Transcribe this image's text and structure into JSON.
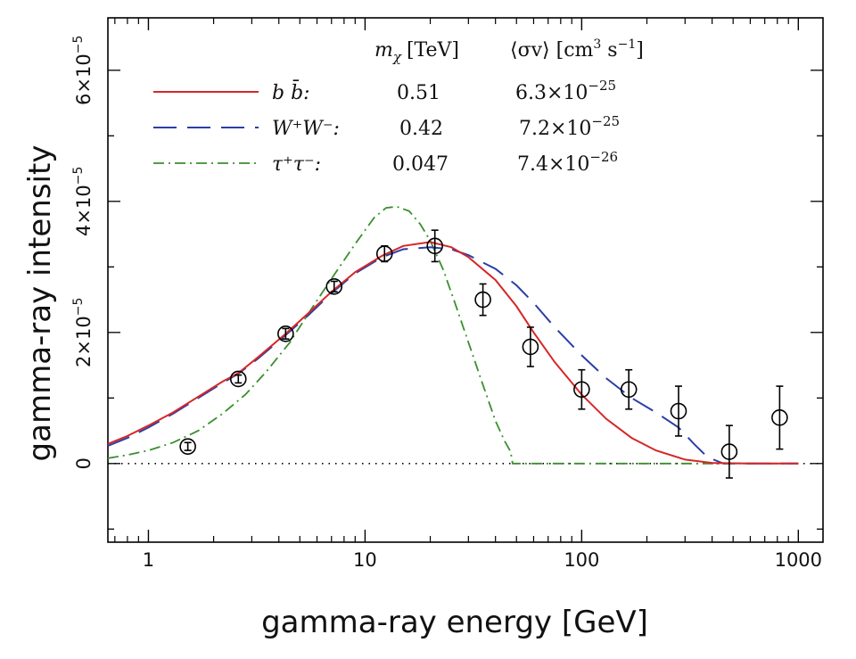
{
  "chart_data": {
    "type": "line",
    "xlabel": "gamma-ray energy [GeV]",
    "ylabel": "gamma-ray intensity",
    "x_scale": "log",
    "xlim": [
      0.65,
      1300
    ],
    "ylim": [
      -1.2e-05,
      6.8e-05
    ],
    "x_ticks": [
      {
        "value": 1,
        "label": "1"
      },
      {
        "value": 10,
        "label": "10"
      },
      {
        "value": 100,
        "label": "100"
      },
      {
        "value": 1000,
        "label": "1000"
      }
    ],
    "y_ticks": [
      {
        "value": 0,
        "mant": "0",
        "exp": ""
      },
      {
        "value": 2e-05,
        "mant": "2×10",
        "exp": "−5"
      },
      {
        "value": 4e-05,
        "mant": "4×10",
        "exp": "−5"
      },
      {
        "value": 6e-05,
        "mant": "6×10",
        "exp": "−5"
      }
    ],
    "legend": {
      "header_mass": "m",
      "header_mass_sub": "χ",
      "header_mass_unit": "[TeV]",
      "header_cs": "⟨σv⟩ [cm",
      "header_cs_sup": "3",
      "header_cs_mid": " s",
      "header_cs_sup2": "−1",
      "header_cs_end": "]",
      "placement": "top-left"
    },
    "series": [
      {
        "name": "b b̄:",
        "mass": "0.51",
        "cs_mant": "6.3×10",
        "cs_exp": "−25",
        "color": "#d62728",
        "dash": "solid",
        "x": [
          0.65,
          0.8,
          1,
          1.3,
          1.7,
          2.2,
          2.6,
          3.2,
          4.3,
          5.5,
          7,
          9,
          12,
          15,
          20,
          25,
          30,
          40,
          50,
          60,
          75,
          100,
          130,
          170,
          220,
          300,
          400,
          600,
          1000
        ],
        "y": [
          3e-06,
          4.2e-06,
          5.8e-06,
          7.8e-06,
          1.02e-05,
          1.25e-05,
          1.38e-05,
          1.62e-05,
          1.98e-05,
          2.3e-05,
          2.62e-05,
          2.92e-05,
          3.17e-05,
          3.32e-05,
          3.38e-05,
          3.3e-05,
          3.15e-05,
          2.8e-05,
          2.4e-05,
          2e-05,
          1.55e-05,
          1.05e-05,
          6.8e-06,
          3.9e-06,
          2e-06,
          6e-07,
          1e-07,
          0,
          0
        ]
      },
      {
        "name": "W⁺W⁻:",
        "mass": "0.42",
        "cs_mant": "7.2×10",
        "cs_exp": "−25",
        "color": "#2b3ea6",
        "dash": "long",
        "x": [
          0.65,
          0.8,
          1,
          1.3,
          1.7,
          2.2,
          2.6,
          3.2,
          4.3,
          5.5,
          7,
          9,
          12,
          15,
          20,
          25,
          30,
          40,
          50,
          60,
          75,
          100,
          130,
          170,
          220,
          280,
          330,
          380,
          450,
          600,
          1000
        ],
        "y": [
          2.7e-06,
          3.9e-06,
          5.5e-06,
          7.6e-06,
          1e-05,
          1.23e-05,
          1.37e-05,
          1.6e-05,
          1.96e-05,
          2.27e-05,
          2.6e-05,
          2.9e-05,
          3.15e-05,
          3.27e-05,
          3.3e-05,
          3.27e-05,
          3.18e-05,
          2.97e-05,
          2.72e-05,
          2.45e-05,
          2.08e-05,
          1.65e-05,
          1.3e-05,
          1e-05,
          7.8e-06,
          5.5e-06,
          3e-06,
          1e-06,
          0,
          0,
          0
        ]
      },
      {
        "name": "τ⁺τ⁻:",
        "mass": "0.047",
        "cs_mant": "7.4×10",
        "cs_exp": "−26",
        "color": "#3a8f2e",
        "dash": "dashdot",
        "x": [
          0.65,
          0.8,
          1,
          1.3,
          1.7,
          2.2,
          2.8,
          3.5,
          4.5,
          5.5,
          7,
          9,
          11,
          12.5,
          14,
          16,
          18,
          20,
          23,
          26,
          30,
          35,
          40,
          44,
          47,
          48,
          50,
          100,
          1000
        ],
        "y": [
          8e-07,
          1.3e-06,
          2e-06,
          3.2e-06,
          5e-06,
          7.6e-06,
          1.05e-05,
          1.4e-05,
          1.85e-05,
          2.3e-05,
          2.82e-05,
          3.35e-05,
          3.75e-05,
          3.9e-05,
          3.92e-05,
          3.85e-05,
          3.65e-05,
          3.4e-05,
          2.95e-05,
          2.45e-05,
          1.85e-05,
          1.2e-05,
          6.5e-06,
          3.5e-06,
          1.8e-06,
          0,
          0,
          0,
          0
        ]
      }
    ],
    "points": {
      "x": [
        1.52,
        2.6,
        4.3,
        7.2,
        12.3,
        21,
        35,
        58,
        100,
        165,
        280,
        480,
        820
      ],
      "y": [
        2.6e-06,
        1.29e-05,
        1.98e-05,
        2.7e-05,
        3.2e-05,
        3.32e-05,
        2.5e-05,
        1.78e-05,
        1.13e-05,
        1.13e-05,
        8e-06,
        1.8e-06,
        7e-06
      ],
      "yerr": [
        6e-07,
        6e-07,
        8e-07,
        8e-07,
        1.2e-06,
        2.4e-06,
        2.4e-06,
        3e-06,
        3e-06,
        3e-06,
        3.8e-06,
        4e-06,
        4.8e-06
      ]
    },
    "zero_line": {
      "y": 0,
      "style": "dotted"
    }
  }
}
